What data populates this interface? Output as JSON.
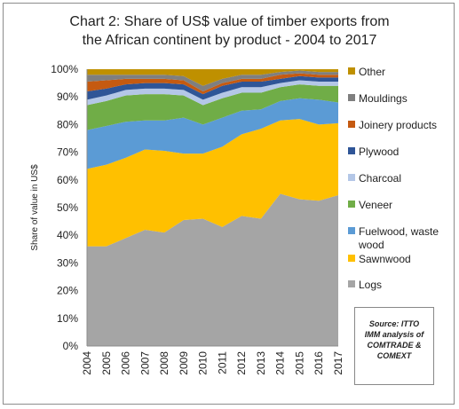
{
  "chart_data": {
    "type": "area",
    "stacked": true,
    "title_lines": [
      "Chart 2: Share of US$ value of timber exports from",
      "the African continent by product - 2004 to 2017"
    ],
    "ylabel": "Share of value in US$",
    "xlabel": "",
    "ylim": [
      0,
      100
    ],
    "y_ticks": [
      "0%",
      "10%",
      "20%",
      "30%",
      "40%",
      "50%",
      "60%",
      "70%",
      "80%",
      "90%",
      "100%"
    ],
    "categories": [
      "2004",
      "2005",
      "2006",
      "2007",
      "2008",
      "2009",
      "2010",
      "2011",
      "2012",
      "2013",
      "2014",
      "2015",
      "2016",
      "2017"
    ],
    "series": [
      {
        "name": "Logs",
        "color": "#a5a5a5",
        "values": [
          36,
          36,
          39,
          42,
          41,
          45.5,
          46,
          43,
          47,
          46,
          55,
          53,
          52.5,
          54.5
        ]
      },
      {
        "name": "Sawnwood",
        "color": "#ffc000",
        "values": [
          28,
          29.5,
          29,
          29,
          29.5,
          24,
          23.5,
          29,
          29.5,
          32.5,
          26.5,
          29,
          27.5,
          26
        ]
      },
      {
        "name": "Fuelwood, waste wood",
        "color": "#5b9bd5",
        "values": [
          14,
          14,
          13,
          10.5,
          11,
          13,
          10.5,
          10.5,
          8.5,
          7,
          7,
          7.5,
          9,
          7.5
        ]
      },
      {
        "name": "Veneer",
        "color": "#70ad47",
        "values": [
          9,
          9,
          9.5,
          9.5,
          9.5,
          8,
          7,
          7,
          6.5,
          6,
          5,
          5,
          5,
          6
        ]
      },
      {
        "name": "Charcoal",
        "color": "#b4c7e7",
        "values": [
          2,
          2,
          2,
          2,
          2,
          2,
          2,
          2,
          2,
          2,
          1.5,
          1.5,
          1.5,
          1.5
        ]
      },
      {
        "name": "Plywood",
        "color": "#2f5597",
        "values": [
          3,
          2.5,
          2,
          2,
          2,
          2,
          2,
          2.5,
          2,
          2,
          1.5,
          1.5,
          1.5,
          1.5
        ]
      },
      {
        "name": "Joinery products",
        "color": "#c55a11",
        "values": [
          3.5,
          3,
          2,
          1.5,
          1.5,
          1.5,
          1,
          1,
          1,
          1,
          1.5,
          1,
          1,
          1
        ]
      },
      {
        "name": "Mouldings",
        "color": "#7f7f7f",
        "values": [
          2.5,
          2,
          1.5,
          1.5,
          1.5,
          1.5,
          2,
          1.5,
          1.5,
          1.5,
          1,
          1,
          1,
          1
        ]
      },
      {
        "name": "Other",
        "color": "#bf9000",
        "values": [
          2,
          3,
          2,
          2,
          2,
          2.5,
          6,
          3.5,
          2,
          2,
          1,
          0.5,
          1,
          1
        ]
      }
    ],
    "legend_placement": "right",
    "legend_order": [
      "Other",
      "Mouldings",
      "Joinery products",
      "Plywood",
      "Charcoal",
      "Veneer",
      "Fuelwood, waste wood",
      "Sawnwood",
      "Logs"
    ],
    "grid": false
  },
  "source_note": [
    "Source: ITTO",
    "IMM analysis of",
    "COMTRADE &",
    "COMEXT"
  ]
}
